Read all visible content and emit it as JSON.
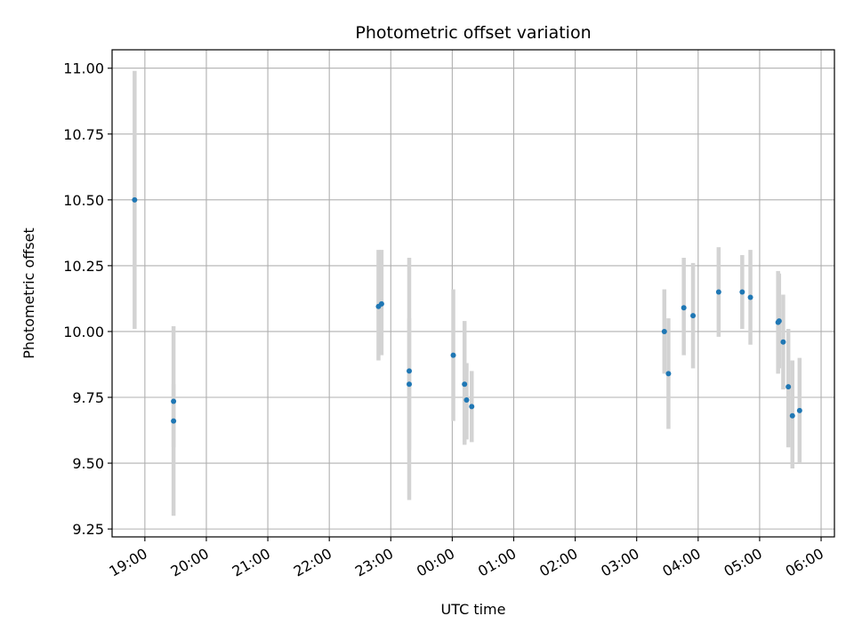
{
  "chart_data": {
    "type": "scatter",
    "title": "Photometric offset variation",
    "xlabel": "UTC time",
    "ylabel": "Photometric offset",
    "x_is_time": true,
    "x_tick_labels": [
      "19:00",
      "20:00",
      "21:00",
      "22:00",
      "23:00",
      "00:00",
      "01:00",
      "02:00",
      "03:00",
      "04:00",
      "05:00",
      "06:00"
    ],
    "x_range": [
      "18:28",
      "06:13"
    ],
    "y_ticks": [
      9.25,
      9.5,
      9.75,
      10.0,
      10.25,
      10.5,
      10.75,
      11.0
    ],
    "y_tick_labels": [
      "9.25",
      "9.50",
      "9.75",
      "10.00",
      "10.25",
      "10.50",
      "10.75",
      "11.00"
    ],
    "ylim": [
      9.22,
      11.07
    ],
    "grid": true,
    "point_color": "#1f77b4",
    "errorbar_color": "#d3d3d3",
    "points": [
      {
        "time": "18:50",
        "y": 10.5,
        "ylow": 10.01,
        "yhigh": 10.99
      },
      {
        "time": "19:28",
        "y": 9.735,
        "ylow": 9.56,
        "yhigh": 10.02
      },
      {
        "time": "19:28",
        "y": 9.66,
        "ylow": 9.3,
        "yhigh": 9.8
      },
      {
        "time": "22:48",
        "y": 10.095,
        "ylow": 9.89,
        "yhigh": 10.31
      },
      {
        "time": "22:51",
        "y": 10.105,
        "ylow": 9.91,
        "yhigh": 10.31
      },
      {
        "time": "23:18",
        "y": 9.85,
        "ylow": 9.55,
        "yhigh": 10.28
      },
      {
        "time": "23:18",
        "y": 9.8,
        "ylow": 9.36,
        "yhigh": 10.05
      },
      {
        "time": "00:01",
        "y": 9.91,
        "ylow": 9.66,
        "yhigh": 10.16
      },
      {
        "time": "00:12",
        "y": 9.8,
        "ylow": 9.57,
        "yhigh": 10.04
      },
      {
        "time": "00:14",
        "y": 9.74,
        "ylow": 9.59,
        "yhigh": 9.88
      },
      {
        "time": "00:19",
        "y": 9.715,
        "ylow": 9.58,
        "yhigh": 9.85
      },
      {
        "time": "03:27",
        "y": 10.0,
        "ylow": 9.84,
        "yhigh": 10.16
      },
      {
        "time": "03:31",
        "y": 9.84,
        "ylow": 9.63,
        "yhigh": 10.05
      },
      {
        "time": "03:46",
        "y": 10.09,
        "ylow": 9.91,
        "yhigh": 10.28
      },
      {
        "time": "03:55",
        "y": 10.06,
        "ylow": 9.86,
        "yhigh": 10.26
      },
      {
        "time": "04:20",
        "y": 10.15,
        "ylow": 9.98,
        "yhigh": 10.32
      },
      {
        "time": "04:43",
        "y": 10.15,
        "ylow": 10.01,
        "yhigh": 10.29
      },
      {
        "time": "04:51",
        "y": 10.13,
        "ylow": 9.95,
        "yhigh": 10.31
      },
      {
        "time": "05:18",
        "y": 10.035,
        "ylow": 9.84,
        "yhigh": 10.23
      },
      {
        "time": "05:19",
        "y": 10.04,
        "ylow": 9.86,
        "yhigh": 10.22
      },
      {
        "time": "05:23",
        "y": 9.96,
        "ylow": 9.78,
        "yhigh": 10.14
      },
      {
        "time": "05:28",
        "y": 9.79,
        "ylow": 9.56,
        "yhigh": 10.01
      },
      {
        "time": "05:32",
        "y": 9.68,
        "ylow": 9.48,
        "yhigh": 9.89
      },
      {
        "time": "05:39",
        "y": 9.7,
        "ylow": 9.5,
        "yhigh": 9.9
      }
    ]
  }
}
